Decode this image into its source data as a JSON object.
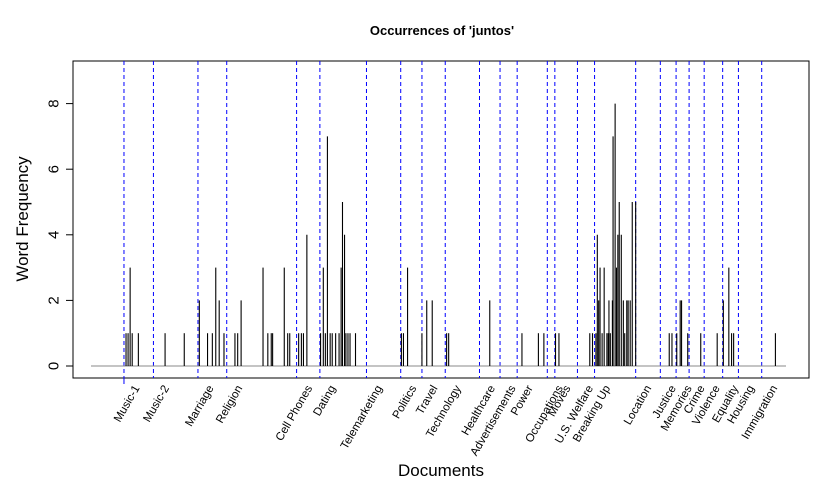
{
  "chart_data": {
    "type": "bar",
    "title": "Occurrences of 'juntos'",
    "xlabel": "Documents",
    "ylabel": "Word Frequency",
    "ylim": [
      0,
      9.3
    ],
    "yticks": [
      0,
      2,
      4,
      6,
      8
    ],
    "x_range": [
      0,
      100
    ],
    "grid": false,
    "colors": {
      "bars": "#000000",
      "dividers": "#0000ff",
      "frame": "#000000"
    },
    "categories": [
      {
        "label": "Music-1",
        "start": 3.5
      },
      {
        "label": "Music-2",
        "start": 7.8
      },
      {
        "label": "Marriage",
        "start": 14.3
      },
      {
        "label": "Religion",
        "start": 18.5
      },
      {
        "label": "Cell Phones",
        "start": 28.7
      },
      {
        "label": "Dating",
        "start": 32.1
      },
      {
        "label": "Telemarketing",
        "start": 38.9
      },
      {
        "label": "Politics",
        "start": 43.9
      },
      {
        "label": "Travel",
        "start": 47.0
      },
      {
        "label": "Technology",
        "start": 50.4
      },
      {
        "label": "Healthcare",
        "start": 55.4
      },
      {
        "label": "Advertisements",
        "start": 58.4
      },
      {
        "label": "Power",
        "start": 60.9
      },
      {
        "label": "Occupations",
        "start": 65.3
      },
      {
        "label": "Moves",
        "start": 66.4
      },
      {
        "label": "U.S. Welfare",
        "start": 69.7
      },
      {
        "label": "Breaking Up",
        "start": 72.2
      },
      {
        "label": "Location",
        "start": 78.2
      },
      {
        "label": "Justice",
        "start": 81.8
      },
      {
        "label": "Memories",
        "start": 84.1
      },
      {
        "label": "Crime",
        "start": 86.0
      },
      {
        "label": "Violence",
        "start": 88.2
      },
      {
        "label": "Equality",
        "start": 90.9
      },
      {
        "label": "Housing",
        "start": 93.2
      },
      {
        "label": "Immigration",
        "start": 96.6
      }
    ],
    "points": [
      [
        3.8,
        1
      ],
      [
        4.1,
        1
      ],
      [
        4.4,
        3
      ],
      [
        4.7,
        1
      ],
      [
        5.6,
        1
      ],
      [
        9.5,
        1
      ],
      [
        12.3,
        1
      ],
      [
        14.5,
        2
      ],
      [
        15.7,
        1
      ],
      [
        16.4,
        1
      ],
      [
        16.9,
        3
      ],
      [
        17.4,
        2
      ],
      [
        18.1,
        1
      ],
      [
        19.7,
        1
      ],
      [
        20.1,
        1
      ],
      [
        20.6,
        2
      ],
      [
        23.8,
        3
      ],
      [
        24.5,
        1
      ],
      [
        25.0,
        1
      ],
      [
        25.2,
        1
      ],
      [
        26.9,
        3
      ],
      [
        27.4,
        1
      ],
      [
        27.7,
        1
      ],
      [
        29.0,
        1
      ],
      [
        29.4,
        1
      ],
      [
        29.7,
        1
      ],
      [
        30.2,
        4
      ],
      [
        32.2,
        1
      ],
      [
        32.6,
        3
      ],
      [
        32.9,
        1
      ],
      [
        33.2,
        7
      ],
      [
        33.6,
        1
      ],
      [
        33.9,
        1
      ],
      [
        34.4,
        1
      ],
      [
        34.9,
        1
      ],
      [
        35.2,
        3
      ],
      [
        35.4,
        5
      ],
      [
        35.7,
        4
      ],
      [
        35.9,
        1
      ],
      [
        36.2,
        1
      ],
      [
        36.5,
        1
      ],
      [
        37.3,
        1
      ],
      [
        44.0,
        1
      ],
      [
        44.3,
        1
      ],
      [
        44.9,
        3
      ],
      [
        47.0,
        1
      ],
      [
        47.7,
        2
      ],
      [
        48.5,
        2
      ],
      [
        50.6,
        1
      ],
      [
        50.9,
        1
      ],
      [
        56.9,
        2
      ],
      [
        61.6,
        1
      ],
      [
        64.0,
        1
      ],
      [
        64.8,
        1
      ],
      [
        66.5,
        1
      ],
      [
        67.0,
        1
      ],
      [
        71.5,
        1
      ],
      [
        71.9,
        1
      ],
      [
        72.4,
        1
      ],
      [
        72.6,
        4
      ],
      [
        72.8,
        2
      ],
      [
        73.0,
        3
      ],
      [
        73.3,
        1
      ],
      [
        73.6,
        3
      ],
      [
        74.0,
        1
      ],
      [
        74.2,
        1
      ],
      [
        74.3,
        2
      ],
      [
        74.5,
        1
      ],
      [
        74.8,
        2
      ],
      [
        74.9,
        7
      ],
      [
        75.2,
        8
      ],
      [
        75.4,
        3
      ],
      [
        75.6,
        4
      ],
      [
        75.8,
        5
      ],
      [
        76.1,
        4
      ],
      [
        76.4,
        2
      ],
      [
        76.6,
        1
      ],
      [
        76.9,
        2
      ],
      [
        77.1,
        2
      ],
      [
        77.4,
        2
      ],
      [
        77.7,
        5
      ],
      [
        78.2,
        5
      ],
      [
        83.1,
        1
      ],
      [
        83.5,
        1
      ],
      [
        84.2,
        1
      ],
      [
        84.7,
        2
      ],
      [
        84.9,
        2
      ],
      [
        85.8,
        1
      ],
      [
        87.7,
        1
      ],
      [
        90.1,
        1
      ],
      [
        91.0,
        2
      ],
      [
        91.8,
        3
      ],
      [
        92.2,
        1
      ],
      [
        92.5,
        1
      ],
      [
        98.6,
        1
      ]
    ]
  }
}
